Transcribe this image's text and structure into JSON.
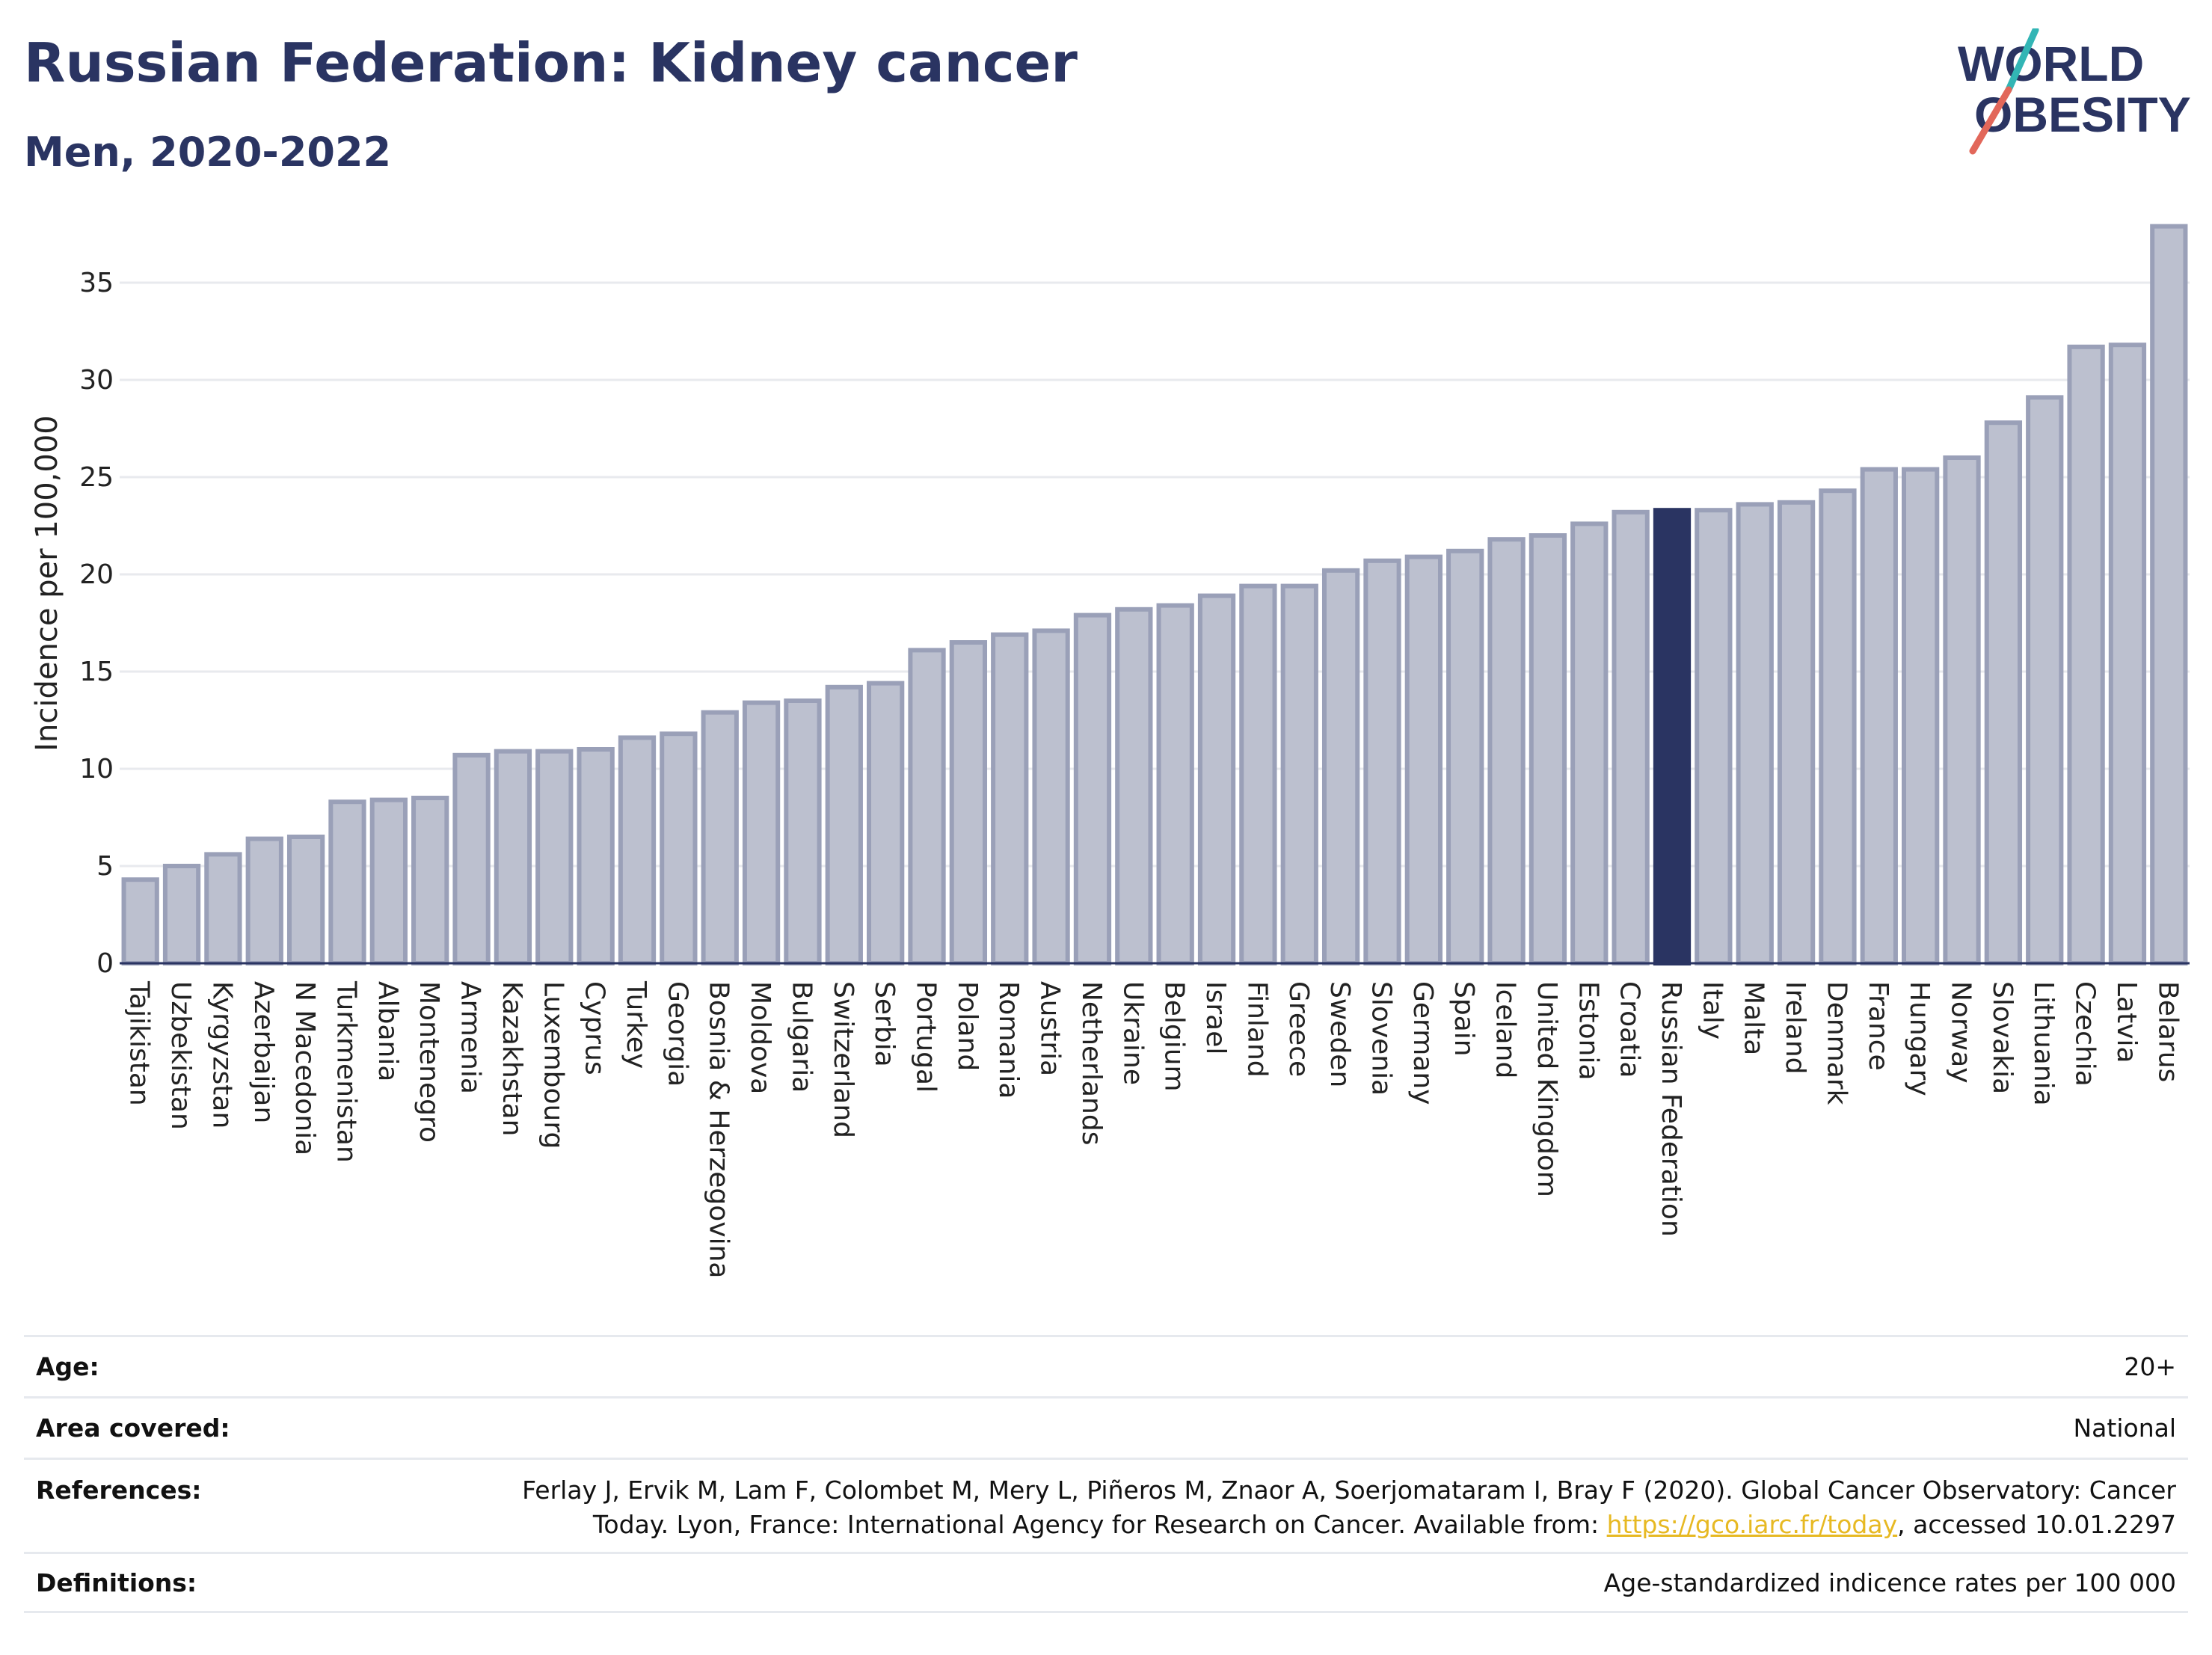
{
  "header": {
    "title": "Russian Federation: Kidney cancer",
    "subtitle": "Men, 2020-2022"
  },
  "logo": {
    "line1": "WORLD",
    "line2": "OBESITY"
  },
  "colors": {
    "bar": "#bcc0cf",
    "bar_border": "#9aa0b8",
    "highlight": "#2a3462",
    "grid": "#e8eaee",
    "logo_text": "#2a3462",
    "logo_slash_top": "#33b5b5",
    "logo_slash_bottom": "#e2675a"
  },
  "chart_data": {
    "type": "bar",
    "ylabel": "Incidence per 100,000",
    "ylim": [
      0,
      38
    ],
    "yticks": [
      0,
      5,
      10,
      15,
      20,
      25,
      30,
      35
    ],
    "grid": true,
    "highlight": "Russian Federation",
    "categories": [
      "Tajikistan",
      "Uzbekistan",
      "Kyrgyzstan",
      "Azerbaijan",
      "N Macedonia",
      "Turkmenistan",
      "Albania",
      "Montenegro",
      "Armenia",
      "Kazakhstan",
      "Luxembourg",
      "Cyprus",
      "Turkey",
      "Georgia",
      "Bosnia & Herzegovina",
      "Moldova",
      "Bulgaria",
      "Switzerland",
      "Serbia",
      "Portugal",
      "Poland",
      "Romania",
      "Austria",
      "Netherlands",
      "Ukraine",
      "Belgium",
      "Israel",
      "Finland",
      "Greece",
      "Sweden",
      "Slovenia",
      "Germany",
      "Spain",
      "Iceland",
      "United Kingdom",
      "Estonia",
      "Croatia",
      "Russian Federation",
      "Italy",
      "Malta",
      "Ireland",
      "Denmark",
      "France",
      "Hungary",
      "Norway",
      "Slovakia",
      "Lithuania",
      "Czechia",
      "Latvia",
      "Belarus"
    ],
    "values": [
      4.3,
      5.0,
      5.6,
      6.4,
      6.5,
      8.3,
      8.4,
      8.5,
      10.7,
      10.9,
      10.9,
      11.0,
      11.6,
      11.8,
      12.9,
      13.4,
      13.5,
      14.2,
      14.4,
      16.1,
      16.5,
      16.9,
      17.1,
      17.9,
      18.2,
      18.4,
      18.9,
      19.4,
      19.4,
      20.2,
      20.7,
      20.9,
      21.2,
      21.8,
      22.0,
      22.6,
      23.2,
      23.3,
      23.3,
      23.6,
      23.7,
      24.3,
      25.4,
      25.4,
      26.0,
      27.8,
      29.1,
      31.7,
      31.8,
      37.9
    ]
  },
  "meta": {
    "age_label": "Age:",
    "age_value": "20+",
    "area_label": "Area covered:",
    "area_value": "National",
    "references_label": "References:",
    "references_text_1": "Ferlay J, Ervik M, Lam F, Colombet M, Mery L, Piñeros M, Znaor A, Soerjomataram I, Bray F (2020). Global Cancer Observatory: Cancer",
    "references_text_2": "Today. Lyon, France: International Agency for Research on Cancer. Available from: ",
    "references_link": "https://gco.iarc.fr/today",
    "references_text_3": ", accessed 10.01.2297",
    "definitions_label": "Definitions:",
    "definitions_value": "Age-standardized indicence rates per 100 000"
  }
}
